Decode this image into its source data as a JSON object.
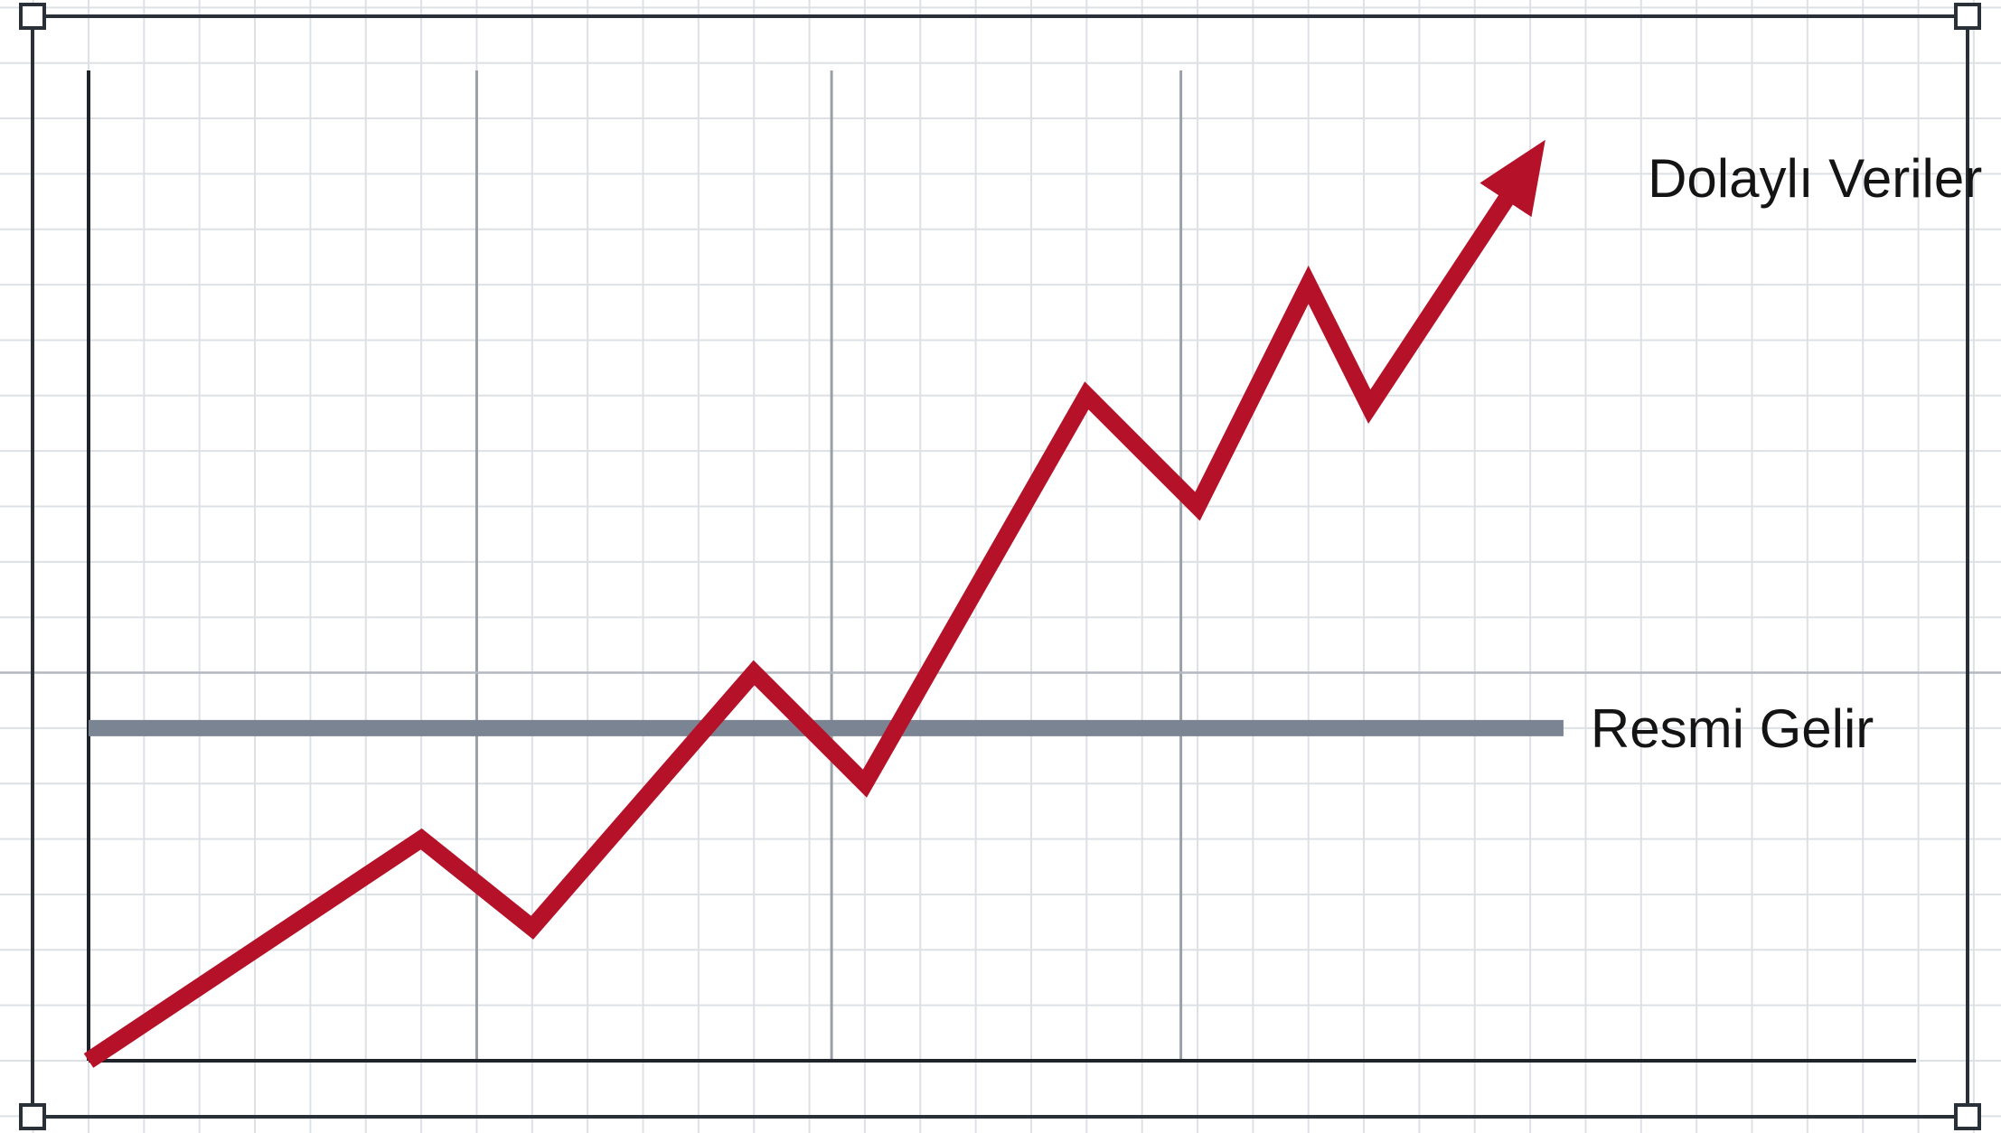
{
  "chart_data": {
    "type": "line",
    "title": "",
    "xlabel": "",
    "ylabel": "",
    "xlim": [
      0,
      16.5
    ],
    "ylim": [
      0,
      9
    ],
    "grid": true,
    "series": [
      {
        "name": "Dolaylı Veriler",
        "color": "#b5122a",
        "arrow_end": true,
        "x": [
          0,
          3,
          4,
          6,
          7,
          9,
          10,
          11,
          11.55,
          13
        ],
        "y": [
          0,
          2,
          1.2,
          3.5,
          2.5,
          6,
          5,
          7,
          5.9,
          8.1
        ]
      },
      {
        "name": "Resmi Gelir",
        "color": "#7b8492",
        "x": [
          0,
          13.3
        ],
        "y": [
          3,
          3
        ]
      }
    ]
  }
}
